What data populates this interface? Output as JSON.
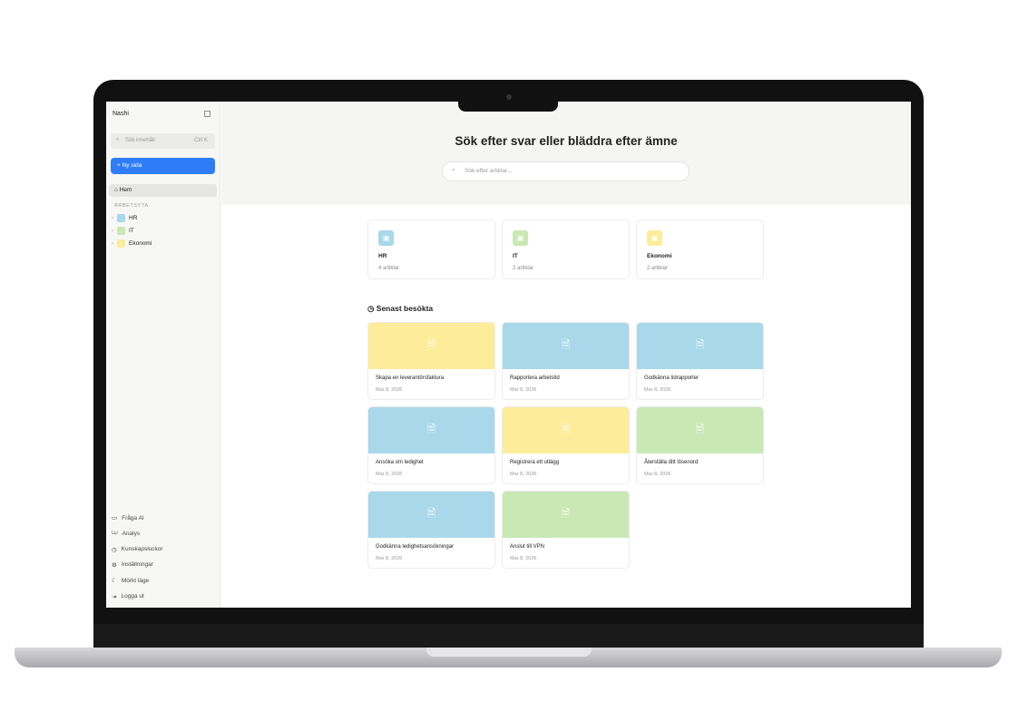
{
  "sidebar": {
    "title": "Nashi",
    "search_placeholder": "Sök innehåll",
    "search_shortcut": "Ctrl K",
    "new_page": "Ny sida",
    "home": "Hem",
    "section": "ARBETSYTA",
    "tree": [
      {
        "label": "HR",
        "color": "#a8d8ea"
      },
      {
        "label": "IT",
        "color": "#c8e8b4"
      },
      {
        "label": "Ekonomi",
        "color": "#fdec9a"
      }
    ],
    "bottom": [
      {
        "label": "Fråga AI",
        "icon": "chat-icon"
      },
      {
        "label": "Analys",
        "icon": "chart-icon"
      },
      {
        "label": "Kunskapsluckor",
        "icon": "clock-icon"
      },
      {
        "label": "Inställningar",
        "icon": "gear-icon"
      },
      {
        "label": "Mörkt läge",
        "icon": "moon-icon"
      },
      {
        "label": "Logga ut",
        "icon": "logout-icon"
      }
    ]
  },
  "header": {
    "title": "Sök efter svar eller bläddra efter ämne",
    "search_placeholder": "Sök efter artiklar..."
  },
  "categories": [
    {
      "name": "HR",
      "count": "4 artiklar",
      "color": "#a8d8ea"
    },
    {
      "name": "IT",
      "count": "2 artiklar",
      "color": "#c8e8b4"
    },
    {
      "name": "Ekonomi",
      "count": "2 artiklar",
      "color": "#fdec9a"
    }
  ],
  "recent": {
    "title": "Senast besökta",
    "items": [
      {
        "title": "Skapa en leverantörsfaktura",
        "date": "Mar 8, 2026",
        "color": "#fdec9a"
      },
      {
        "title": "Rapportera arbetstid",
        "date": "Mar 8, 2026",
        "color": "#a8d8ea"
      },
      {
        "title": "Godkänna tidrapporter",
        "date": "Mar 8, 2026",
        "color": "#a8d8ea"
      },
      {
        "title": "Ansöka om ledighet",
        "date": "Mar 8, 2026",
        "color": "#a8d8ea"
      },
      {
        "title": "Registrera ett utlägg",
        "date": "Mar 8, 2026",
        "color": "#fdec9a"
      },
      {
        "title": "Återställa ditt lösenord",
        "date": "Mar 8, 2026",
        "color": "#c8e8b4"
      },
      {
        "title": "Godkänna ledighetsansökningar",
        "date": "Mar 8, 2026",
        "color": "#a8d8ea"
      },
      {
        "title": "Anslut till VPN",
        "date": "Mar 8, 2026",
        "color": "#c8e8b4"
      }
    ]
  }
}
